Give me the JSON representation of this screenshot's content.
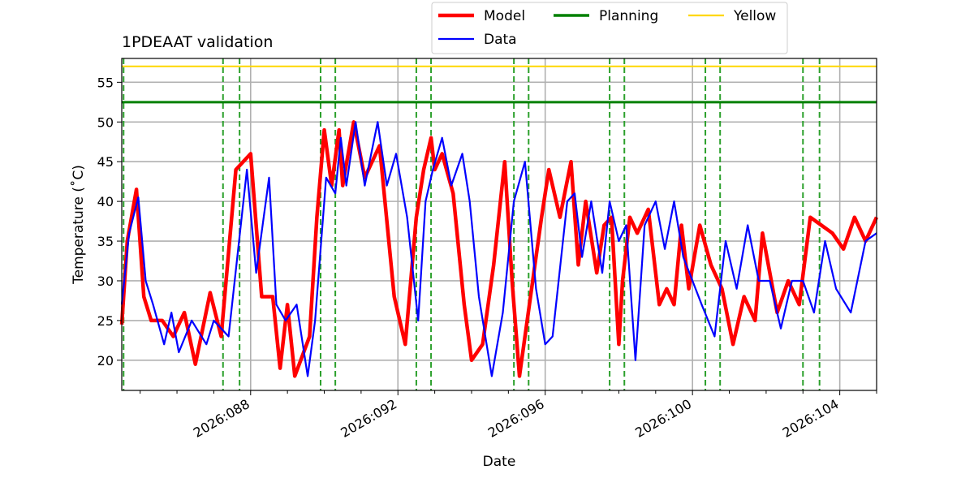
{
  "chart_data": {
    "type": "line",
    "title": "1PDEAAT validation",
    "xlabel": "Date",
    "ylabel": "Temperature ($^\\circ$C)",
    "ylabel_display": "Temperature (˚C)",
    "xlim": [
      2026.0845,
      2026.105
    ],
    "ylim": [
      16.2,
      58
    ],
    "x_ticks": [
      {
        "value": 2026.088,
        "label": "2026:088"
      },
      {
        "value": 2026.092,
        "label": "2026:092"
      },
      {
        "value": 2026.096,
        "label": "2026:096"
      },
      {
        "value": 2026.1,
        "label": "2026:100"
      },
      {
        "value": 2026.104,
        "label": "2026:104"
      }
    ],
    "y_ticks": [
      20,
      25,
      30,
      35,
      40,
      45,
      50,
      55
    ],
    "grid": true,
    "legend": {
      "placement": "top-center, above plot",
      "columns": 3
    },
    "series": [
      {
        "name": "Model",
        "color": "#ff0000",
        "style": "solid-thick",
        "x": [
          2026.0845,
          2026.08465,
          2026.0849,
          2026.0851,
          2026.0853,
          2026.0856,
          2026.0859,
          2026.0862,
          2026.0865,
          2026.0869,
          2026.0872,
          2026.0876,
          2026.088,
          2026.0883,
          2026.0886,
          2026.0888,
          2026.089,
          2026.0892,
          2026.0896,
          2026.0898,
          2026.09,
          2026.0902,
          2026.0904,
          2026.0905,
          2026.0908,
          2026.0911,
          2026.0915,
          2026.0919,
          2026.0922,
          2026.0925,
          2026.0927,
          2026.0929,
          2026.093,
          2026.0932,
          2026.0935,
          2026.0938,
          2026.094,
          2026.0943,
          2026.0946,
          2026.0949,
          2026.0951,
          2026.0953,
          2026.0956,
          2026.0959,
          2026.0961,
          2026.0964,
          2026.0967,
          2026.0969,
          2026.0971,
          2026.0974,
          2026.0976,
          2026.0978,
          2026.098,
          2026.0981,
          2026.0983,
          2026.0985,
          2026.0988,
          2026.0991,
          2026.0993,
          2026.0995,
          2026.0997,
          2026.0999,
          2026.1002,
          2026.1005,
          2026.1008,
          2026.1011,
          2026.1014,
          2026.1017,
          2026.1019,
          2026.1023,
          2026.1026,
          2026.1029,
          2026.1032,
          2026.1035,
          2026.1038,
          2026.1041,
          2026.1044,
          2026.1047,
          2026.105
        ],
        "y": [
          24.5,
          35,
          41.5,
          28,
          25,
          25,
          23,
          26,
          19.5,
          28.5,
          23,
          44,
          46,
          28,
          28,
          19,
          27,
          18,
          23,
          38,
          49,
          42,
          49,
          42,
          50,
          43,
          47,
          28,
          22,
          38,
          44,
          48,
          44,
          46,
          41,
          27,
          20,
          22,
          32,
          45,
          30,
          18,
          28,
          38,
          44,
          38,
          45,
          32,
          40,
          31,
          37,
          38,
          22,
          30,
          38,
          36,
          39,
          27,
          29,
          27,
          37,
          29,
          37,
          32,
          29,
          22,
          28,
          25,
          36,
          26,
          30,
          27,
          38,
          37,
          36,
          34,
          38,
          35,
          38
        ]
      },
      {
        "name": "Data",
        "color": "#0000ff",
        "style": "solid",
        "x": [
          2026.0845,
          2026.0847,
          2026.08495,
          2026.08515,
          2026.08535,
          2026.08565,
          2026.08585,
          2026.08605,
          2026.0864,
          2026.0868,
          2026.087,
          2026.0874,
          2026.0879,
          2026.08815,
          2026.0885,
          2026.0887,
          2026.08895,
          2026.08925,
          2026.08955,
          2026.08975,
          2026.09005,
          2026.0903,
          2026.09045,
          2026.0906,
          2026.09085,
          2026.0911,
          2026.09145,
          2026.0917,
          2026.09195,
          2026.09225,
          2026.09255,
          2026.09275,
          2026.09295,
          2026.0932,
          2026.09345,
          2026.09375,
          2026.09395,
          2026.0942,
          2026.09455,
          2026.09485,
          2026.09515,
          2026.09545,
          2026.09575,
          2026.096,
          2026.0962,
          2026.0966,
          2026.0968,
          2026.097,
          2026.09725,
          2026.09755,
          2026.09775,
          2026.098,
          2026.0982,
          2026.09845,
          2026.0987,
          2026.099,
          2026.09925,
          2026.0995,
          2026.09975,
          2026.1,
          2026.10025,
          2026.1006,
          2026.1009,
          2026.1012,
          2026.1015,
          2026.1018,
          2026.1021,
          2026.1024,
          2026.1027,
          2026.103,
          2026.1033,
          2026.1036,
          2026.1039,
          2026.1043,
          2026.1047,
          2026.105
        ],
        "y": [
          27,
          36,
          40.5,
          30,
          27,
          22,
          26,
          21,
          25,
          22,
          25,
          23,
          44,
          31,
          43,
          27,
          25,
          27,
          18,
          25,
          43,
          41,
          48,
          42,
          50,
          42,
          50,
          42,
          46,
          38,
          25,
          40,
          44,
          48,
          42,
          46,
          40,
          28,
          18,
          26,
          40,
          45,
          29,
          22,
          23,
          40,
          41,
          33,
          40,
          31,
          40,
          35,
          37,
          20,
          37,
          40,
          34,
          40,
          33,
          30,
          27,
          23,
          35,
          29,
          37,
          30,
          30,
          24,
          30,
          30,
          26,
          35,
          29,
          26,
          35,
          36
        ]
      },
      {
        "name": "Planning",
        "color": "#008000",
        "style": "hline",
        "value": 52.5
      },
      {
        "name": "Yellow",
        "color": "#ffd700",
        "style": "hline",
        "value": 57
      }
    ],
    "vertical_markers": {
      "color": "#2ca02c",
      "style": "dashed",
      "x": [
        2026.08455,
        2026.08725,
        2026.0877,
        2026.0899,
        2026.0903,
        2026.0925,
        2026.0929,
        2026.09515,
        2026.09555,
        2026.09775,
        2026.09815,
        2026.10035,
        2026.10075,
        2026.103,
        2026.10345
      ]
    }
  }
}
